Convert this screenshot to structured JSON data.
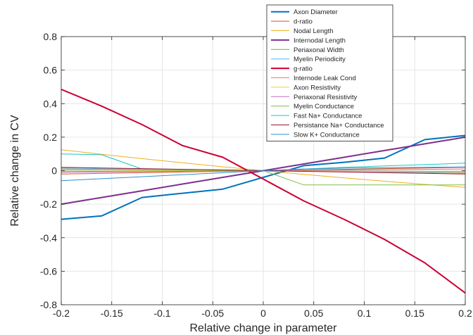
{
  "chart_data": {
    "type": "line",
    "xlabel": "Relative change in parameter",
    "ylabel": "Relative change in CV",
    "xlim": [
      -0.2,
      0.2
    ],
    "ylim": [
      -0.8,
      0.8
    ],
    "x_ticks": [
      -0.2,
      -0.15,
      -0.1,
      -0.05,
      0,
      0.05,
      0.1,
      0.15,
      0.2
    ],
    "x_tick_labels": [
      "-0.2",
      "-0.15",
      "-0.1",
      "-0.05",
      "0",
      "0.05",
      "0.1",
      "0.15",
      "0.2"
    ],
    "y_ticks": [
      -0.8,
      -0.6,
      -0.4,
      -0.2,
      0,
      0.2,
      0.4,
      0.6,
      0.8
    ],
    "y_tick_labels": [
      "-0.8",
      "-0.6",
      "-0.4",
      "-0.2",
      "0",
      "0.2",
      "0.4",
      "0.6",
      "0.8"
    ],
    "grid": true,
    "legend_position": "top-right",
    "x": [
      -0.2,
      -0.16,
      -0.12,
      -0.08,
      -0.04,
      0,
      0.04,
      0.08,
      0.12,
      0.16,
      0.2
    ],
    "series": [
      {
        "name": "Axon Diameter",
        "color": "#0072bd",
        "width": 2,
        "values": [
          -0.29,
          -0.27,
          -0.16,
          -0.135,
          -0.11,
          -0.04,
          0.03,
          0.05,
          0.075,
          0.185,
          0.21
        ]
      },
      {
        "name": "d-ratio",
        "color": "#d95319",
        "width": 1,
        "values": [
          -0.02,
          -0.016,
          -0.012,
          -0.008,
          -0.004,
          0,
          0.004,
          0.008,
          0.012,
          0.016,
          0.02
        ]
      },
      {
        "name": "Nodal Length",
        "color": "#edb120",
        "width": 1,
        "values": [
          0.125,
          0.098,
          0.072,
          0.047,
          0.023,
          0,
          -0.022,
          -0.043,
          -0.063,
          -0.082,
          -0.1
        ]
      },
      {
        "name": "Internodal Length",
        "color": "#7e2f8e",
        "width": 2,
        "values": [
          -0.2,
          -0.16,
          -0.12,
          -0.08,
          -0.04,
          0,
          0.04,
          0.08,
          0.12,
          0.16,
          0.2
        ]
      },
      {
        "name": "Periaxonal Width",
        "color": "#77ac30",
        "width": 1,
        "values": [
          0.005,
          0.004,
          0.003,
          0.002,
          0.001,
          0,
          -0.001,
          -0.002,
          -0.003,
          -0.004,
          -0.005
        ]
      },
      {
        "name": "Myelin Periodicity",
        "color": "#4dbeee",
        "width": 1,
        "values": [
          0.015,
          0.012,
          0.009,
          0.006,
          0.003,
          0,
          -0.003,
          -0.006,
          -0.009,
          -0.012,
          -0.015
        ]
      },
      {
        "name": "g-ratio",
        "color": "#cc0033",
        "width": 2,
        "values": [
          0.485,
          0.385,
          0.275,
          0.15,
          0.08,
          -0.05,
          -0.18,
          -0.29,
          -0.41,
          -0.55,
          -0.73
        ]
      },
      {
        "name": "Internode Leak Cond",
        "color": "#e8815a",
        "width": 1,
        "values": [
          0.01,
          0.008,
          0.006,
          0.004,
          0.002,
          0,
          -0.002,
          -0.004,
          -0.006,
          -0.008,
          -0.01
        ]
      },
      {
        "name": "Axon Resistivity",
        "color": "#f2cc2e",
        "width": 1,
        "values": [
          0.008,
          0.006,
          0.005,
          0.003,
          0.002,
          0,
          -0.002,
          -0.003,
          -0.005,
          -0.006,
          -0.008
        ]
      },
      {
        "name": "Periaxonal Resistivity",
        "color": "#c66fc1",
        "width": 1,
        "values": [
          -0.01,
          -0.008,
          -0.006,
          -0.004,
          -0.002,
          0,
          0.002,
          0.004,
          0.006,
          0.008,
          0.01
        ]
      },
      {
        "name": "Myelin Conductance",
        "color": "#82bd4a",
        "width": 1,
        "values": [
          -0.005,
          -0.004,
          -0.003,
          -0.002,
          -0.001,
          0,
          -0.085,
          -0.085,
          -0.085,
          -0.085,
          -0.085
        ]
      },
      {
        "name": "Fast Na+ Conductance",
        "color": "#19c6c6",
        "width": 1,
        "values": [
          0.1,
          0.095,
          0.01,
          0.008,
          0.004,
          0,
          0.01,
          0.02,
          0.028,
          0.036,
          0.045
        ]
      },
      {
        "name": "Persistance Na+ Conductance",
        "color": "#a2142f",
        "width": 1,
        "values": [
          0.02,
          0.016,
          0.012,
          0.008,
          0.004,
          0,
          -0.004,
          -0.008,
          -0.012,
          -0.016,
          -0.02
        ]
      },
      {
        "name": "Slow K+ Conductance",
        "color": "#2f8fd0",
        "width": 1,
        "values": [
          -0.06,
          -0.048,
          -0.036,
          -0.024,
          -0.012,
          0,
          0.01,
          0.015,
          0.018,
          0.02,
          0.022
        ]
      }
    ]
  }
}
